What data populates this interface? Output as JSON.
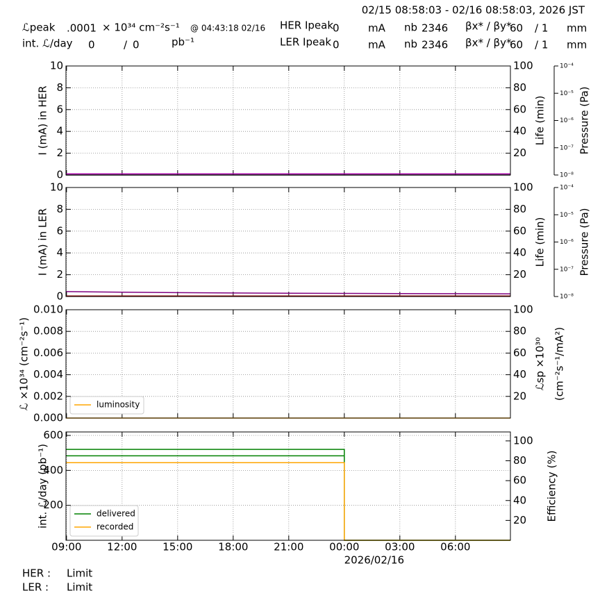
{
  "header": {
    "date_range": "02/15 08:58:03 - 02/16 08:58:03, 2026 JST",
    "peak_lum_label": "ℒpeak",
    "peak_lum_value": ".0001",
    "peak_lum_unit": "× 10³⁴ cm⁻²s⁻¹",
    "peak_time": "@ 04:43:18 02/16",
    "int_lum_label": "int. ℒ/day",
    "int_lum_delivered": "0",
    "int_lum_sep": "/",
    "int_lum_recorded": "0",
    "int_lum_unit": "pb⁻¹",
    "her": {
      "ipeak_label": "HER Ipeak",
      "ipeak_value": "0",
      "ipeak_unit": "mA",
      "nb_label": "nb",
      "nb_value": "2346",
      "beta_label": "βx* / βy*",
      "beta_x": "60",
      "beta_y": "/ 1",
      "beta_unit": "mm"
    },
    "ler": {
      "ipeak_label": "LER Ipeak",
      "ipeak_value": "0",
      "ipeak_unit": "mA",
      "nb_label": "nb",
      "nb_value": "2346",
      "beta_label": "βx* / βy*",
      "beta_x": "60",
      "beta_y": "/ 1",
      "beta_unit": "mm"
    }
  },
  "chart_data": [
    {
      "type": "line",
      "ylabel": "I (mA) in HER",
      "xlim": [
        -0.03,
        23.97
      ],
      "xticks": [
        0,
        3,
        6,
        9,
        12,
        15,
        18,
        21
      ],
      "ylim": [
        0,
        10
      ],
      "yticks": [
        0,
        2,
        4,
        6,
        8,
        10
      ],
      "y2label": "Life (min)",
      "y2lim": [
        0,
        100
      ],
      "y2ticks": [
        20,
        40,
        60,
        80,
        100
      ],
      "y3label": "Pressure (Pa)",
      "y3scale": "log",
      "y3lim": [
        1e-08,
        0.0001
      ],
      "y3ticks": [
        {
          "value": 1e-08,
          "label": "10⁻⁸"
        },
        {
          "value": 1e-07,
          "label": "10⁻⁷"
        },
        {
          "value": 1e-06,
          "label": "10⁻⁶"
        },
        {
          "value": 1e-05,
          "label": "10⁻⁵"
        },
        {
          "value": 0.0001,
          "label": "10⁻⁴"
        }
      ],
      "grid": true,
      "series": [
        {
          "color": "#000000",
          "x": [
            -0.03,
            23.97
          ],
          "values": [
            0,
            0
          ]
        },
        {
          "color": "#aa00aa",
          "x": [
            -0.03,
            6,
            12,
            18,
            23.97
          ],
          "values": [
            0.1,
            0.1,
            0.1,
            0.1,
            0.1
          ]
        }
      ]
    },
    {
      "type": "line",
      "ylabel": "I (mA) in LER",
      "xlim": [
        -0.03,
        23.97
      ],
      "xticks": [
        0,
        3,
        6,
        9,
        12,
        15,
        18,
        21
      ],
      "ylim": [
        0,
        10
      ],
      "yticks": [
        0,
        2,
        4,
        6,
        8,
        10
      ],
      "y2label": "Life (min)",
      "y2lim": [
        0,
        100
      ],
      "y2ticks": [
        20,
        40,
        60,
        80,
        100
      ],
      "y3label": "Pressure (Pa)",
      "y3scale": "log",
      "y3lim": [
        1e-08,
        0.0001
      ],
      "y3ticks": [
        {
          "value": 1e-08,
          "label": "10⁻⁸"
        },
        {
          "value": 1e-07,
          "label": "10⁻⁷"
        },
        {
          "value": 1e-06,
          "label": "10⁻⁶"
        },
        {
          "value": 1e-05,
          "label": "10⁻⁵"
        },
        {
          "value": 0.0001,
          "label": "10⁻⁴"
        }
      ],
      "grid": true,
      "series": [
        {
          "color": "#8b0000",
          "x": [
            -0.03,
            23.97
          ],
          "values": [
            0.05,
            0.05
          ]
        },
        {
          "color": "#800080",
          "x": [
            -0.03,
            3,
            6,
            9,
            12,
            15,
            18,
            21,
            23.97
          ],
          "values": [
            0.45,
            0.4,
            0.36,
            0.33,
            0.3,
            0.29,
            0.27,
            0.26,
            0.25
          ]
        }
      ]
    },
    {
      "type": "line",
      "ylabel": "ℒ ×10³⁴ (cm⁻²s⁻¹)",
      "xlim": [
        -0.03,
        23.97
      ],
      "xticks": [
        0,
        3,
        6,
        9,
        12,
        15,
        18,
        21
      ],
      "ylim": [
        0,
        0.01
      ],
      "yticks": [
        {
          "value": 0,
          "label": "0.000"
        },
        {
          "value": 0.002,
          "label": "0.002"
        },
        {
          "value": 0.004,
          "label": "0.004"
        },
        {
          "value": 0.006,
          "label": "0.006"
        },
        {
          "value": 0.008,
          "label": "0.008"
        },
        {
          "value": 0.01,
          "label": "0.010"
        }
      ],
      "y2label": [
        "ℒsp ×10³⁰",
        "(cm⁻²s⁻¹/mA²)"
      ],
      "y2lim": [
        0,
        100
      ],
      "y2ticks": [
        20,
        40,
        60,
        80,
        100
      ],
      "grid": true,
      "legend": "lower left",
      "series": [
        {
          "name": "luminosity",
          "color": "#ffa500",
          "x": [
            -0.03,
            23.97
          ],
          "values": [
            0,
            0
          ]
        }
      ]
    },
    {
      "type": "line",
      "ylabel": "int. ℒ/day (pb⁻¹)",
      "xlim": [
        -0.03,
        23.97
      ],
      "xlabel": "2026/02/16",
      "xticks": [
        {
          "value": 0,
          "label": "09:00"
        },
        {
          "value": 3,
          "label": "12:00"
        },
        {
          "value": 6,
          "label": "15:00"
        },
        {
          "value": 9,
          "label": "18:00"
        },
        {
          "value": 12,
          "label": "21:00"
        },
        {
          "value": 15,
          "label": "00:00"
        },
        {
          "value": 18,
          "label": "03:00"
        },
        {
          "value": 21,
          "label": "06:00"
        }
      ],
      "ylim": [
        0,
        620
      ],
      "yticks": [
        200,
        400,
        600
      ],
      "y2label": "Efficiency (%)",
      "y2lim": [
        0,
        109
      ],
      "y2ticks": [
        20,
        40,
        60,
        80,
        100
      ],
      "grid": true,
      "legend": "lower left",
      "series": [
        {
          "name": "delivered",
          "color": "#008000",
          "x": [
            -0.03,
            15,
            15,
            23.97
          ],
          "values": [
            520,
            520,
            0,
            0
          ]
        },
        {
          "name": "recorded",
          "color": "#ffa500",
          "x": [
            -0.03,
            15,
            15,
            23.97
          ],
          "values": [
            444,
            444,
            0,
            0
          ]
        },
        {
          "color": "#008000",
          "axis": "y2",
          "x": [
            -0.03,
            15
          ],
          "values": [
            85,
            85
          ]
        }
      ]
    }
  ],
  "footer": {
    "her_label": "HER :",
    "her_status": "Limit",
    "ler_label": "LER :",
    "ler_status": "Limit"
  }
}
